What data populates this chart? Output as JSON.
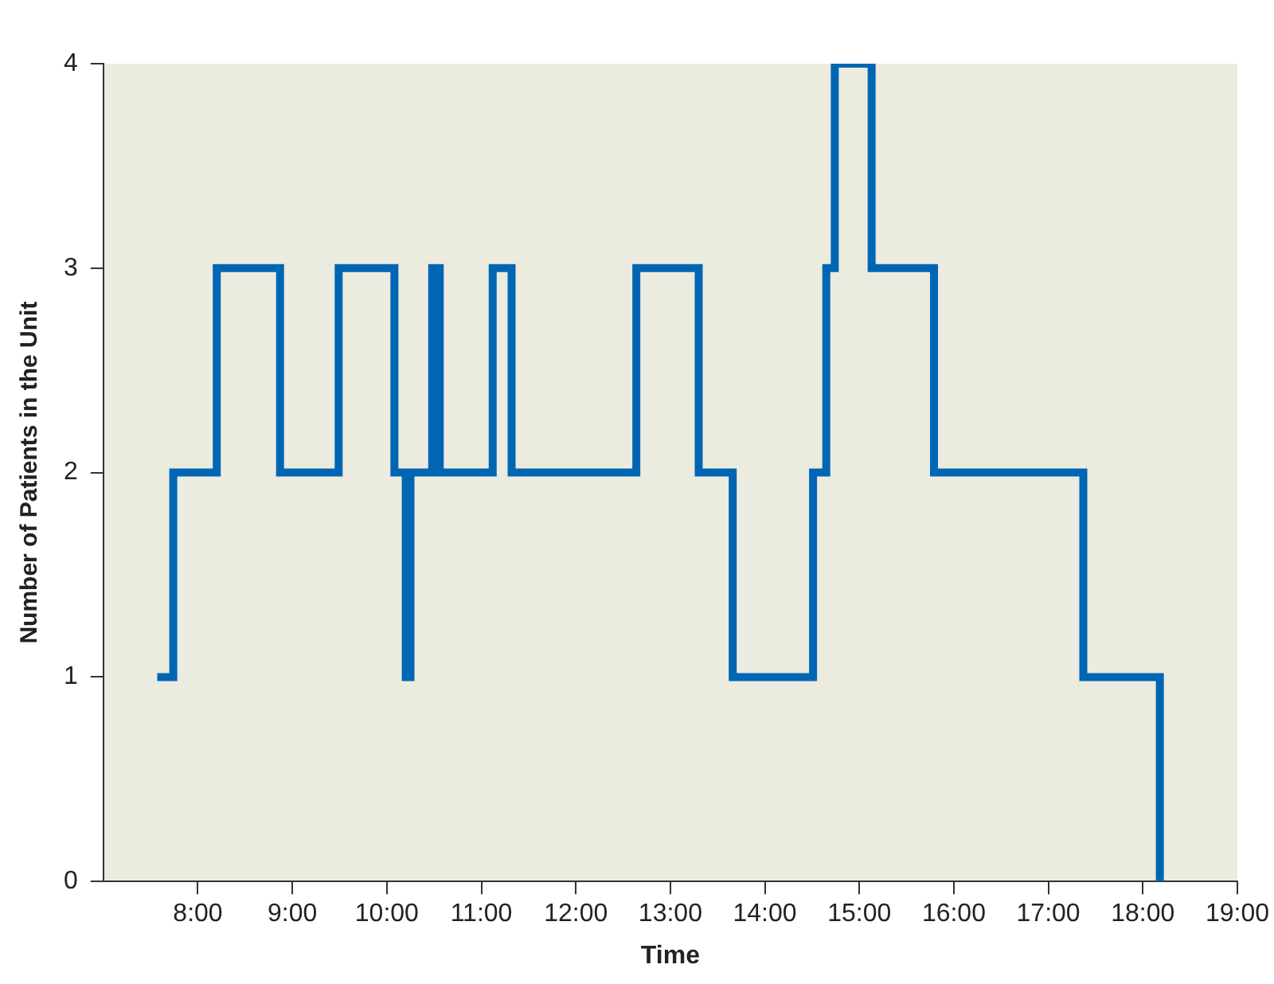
{
  "chart_data": {
    "type": "step",
    "xlabel": "Time",
    "ylabel": "Number of Patients in the Unit",
    "xlim": [
      7,
      19
    ],
    "xticks": [
      {
        "value": 8,
        "label": "8:00"
      },
      {
        "value": 9,
        "label": "9:00"
      },
      {
        "value": 10,
        "label": "10:00"
      },
      {
        "value": 11,
        "label": "11:00"
      },
      {
        "value": 12,
        "label": "12:00"
      },
      {
        "value": 13,
        "label": "13:00"
      },
      {
        "value": 14,
        "label": "14:00"
      },
      {
        "value": 15,
        "label": "15:00"
      },
      {
        "value": 16,
        "label": "16:00"
      },
      {
        "value": 17,
        "label": "17:00"
      },
      {
        "value": 18,
        "label": "18:00"
      },
      {
        "value": 19,
        "label": "19:00"
      }
    ],
    "ylim": [
      0,
      4
    ],
    "yticks": [
      0,
      1,
      2,
      3,
      4
    ],
    "grid": false,
    "legend": false,
    "marker": "none",
    "line_style": "solid",
    "series": [
      {
        "color": "#0066b3",
        "x": [
          7.57,
          7.74,
          8.2,
          8.87,
          9.49,
          10.08,
          10.2,
          10.25,
          10.48,
          10.56,
          11.12,
          11.32,
          12.64,
          13.3,
          13.66,
          14.51,
          14.65,
          14.74,
          15.13,
          15.79,
          17.37,
          18.18
        ],
        "values": [
          1,
          2,
          3,
          2,
          3,
          2,
          1,
          2,
          3,
          2,
          3,
          2,
          3,
          2,
          1,
          2,
          3,
          4,
          3,
          2,
          1,
          0
        ]
      }
    ]
  }
}
